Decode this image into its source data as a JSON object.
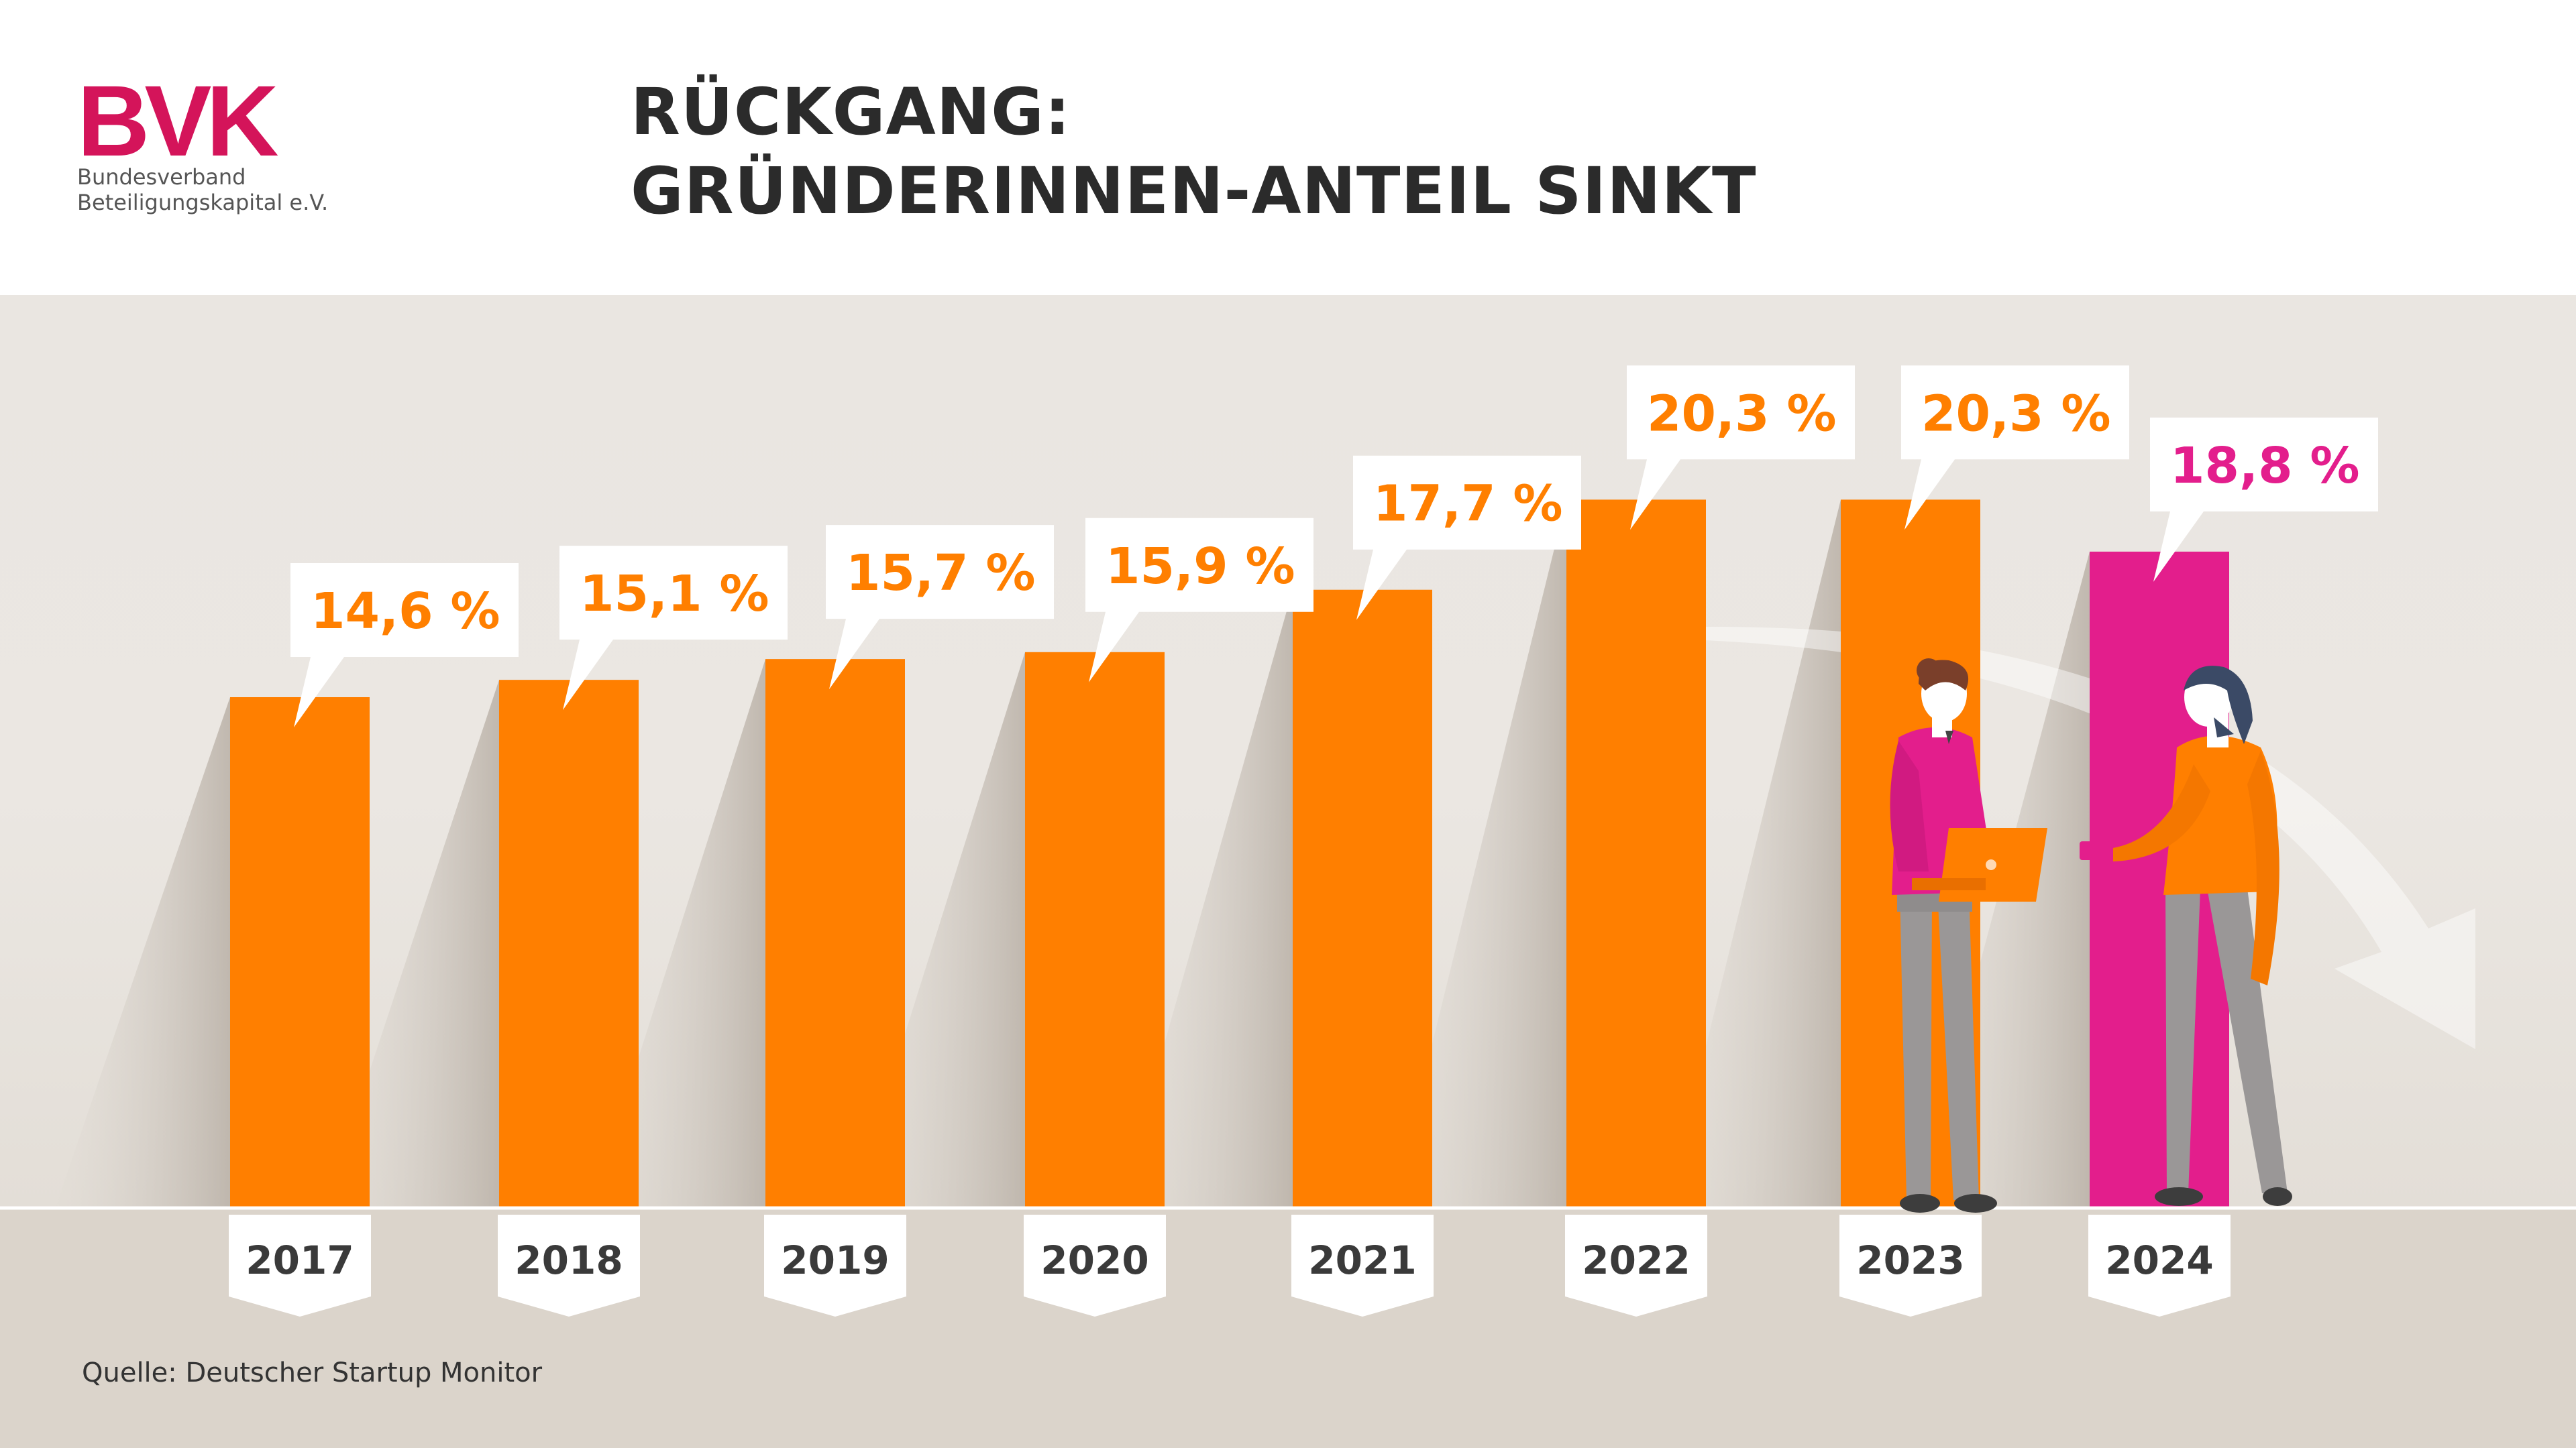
{
  "brand": {
    "logo_text": "BVK",
    "org_line1": "Bundesverband",
    "org_line2": "Beteiligungskapital e.V."
  },
  "title": {
    "line1": "RÜCKGANG:",
    "line2": "GRÜNDERINNEN-ANTEIL SINKT"
  },
  "source": "Quelle: Deutscher Startup Monitor",
  "colors": {
    "orange": "#ff7f00",
    "magenta": "#e31e8c",
    "background_upper": "#eae6e1",
    "background_lower": "#dcd5cd",
    "text_dark": "#3a3a3a",
    "brand_red": "#d4145a"
  },
  "chart_data": {
    "type": "bar",
    "categories": [
      "2017",
      "2018",
      "2019",
      "2020",
      "2021",
      "2022",
      "2023",
      "2024"
    ],
    "values": [
      14.6,
      15.1,
      15.7,
      15.9,
      17.7,
      20.3,
      20.3,
      18.8
    ],
    "value_labels": [
      "14,6 %",
      "15,1 %",
      "15,7 %",
      "15,9 %",
      "17,7 %",
      "20,3 %",
      "20,3 %",
      "18,8 %"
    ],
    "unit": "%",
    "highlight_index": 7,
    "title": "RÜCKGANG: GRÜNDERINNEN-ANTEIL SINKT",
    "xlabel": "",
    "ylabel": "",
    "grid": false,
    "legend": "none"
  }
}
